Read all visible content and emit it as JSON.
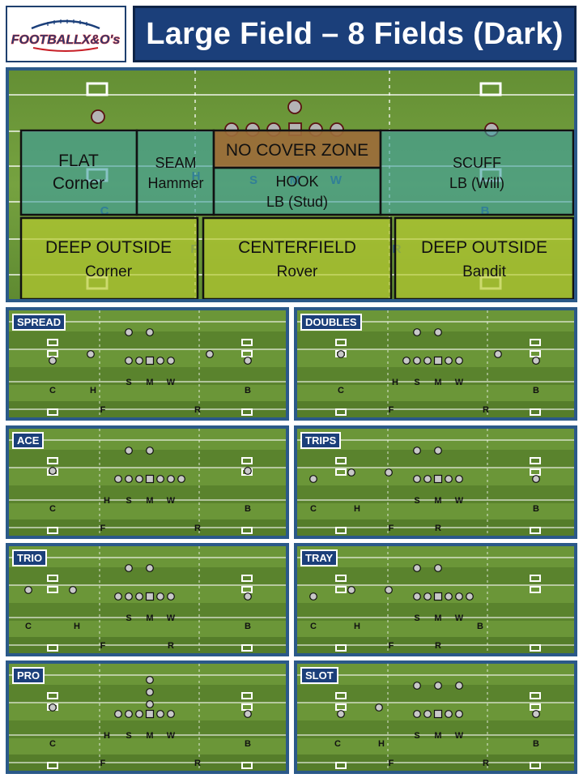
{
  "header": {
    "logo_text": "FOOTBALLX&O's",
    "title": "Large Field – 8 Fields (Dark)"
  },
  "big_field": {
    "zones": [
      {
        "name": "FLAT",
        "player": "Corner"
      },
      {
        "name": "SEAM",
        "player": "Hammer"
      },
      {
        "name": "NO COVER ZONE",
        "player": ""
      },
      {
        "name": "HOOK",
        "player": "LB (Stud)"
      },
      {
        "name": "SCUFF",
        "player": "LB (Will)"
      },
      {
        "name": "DEEP OUTSIDE",
        "player": "Corner"
      },
      {
        "name": "CENTERFIELD",
        "player": "Rover"
      },
      {
        "name": "DEEP OUTSIDE",
        "player": "Bandit"
      }
    ],
    "defenders": [
      "C",
      "H",
      "S",
      "M",
      "W",
      "B",
      "F",
      "R"
    ]
  },
  "formations": [
    {
      "name": "SPREAD",
      "defenders": [
        "C",
        "H",
        "S",
        "M",
        "W",
        "B",
        "F",
        "R"
      ]
    },
    {
      "name": "DOUBLES",
      "defenders": [
        "H",
        "S",
        "M",
        "W",
        "C",
        "B",
        "F",
        "R"
      ]
    },
    {
      "name": "ACE",
      "defenders": [
        "H",
        "S",
        "M",
        "W",
        "C",
        "B",
        "F",
        "R"
      ]
    },
    {
      "name": "TRIPS",
      "defenders": [
        "S",
        "M",
        "W",
        "C",
        "H",
        "B",
        "F",
        "R"
      ]
    },
    {
      "name": "TRIO",
      "defenders": [
        "S",
        "M",
        "W",
        "C",
        "H",
        "B",
        "F",
        "R"
      ]
    },
    {
      "name": "TRAY",
      "defenders": [
        "S",
        "M",
        "W",
        "B",
        "C",
        "H",
        "F",
        "R"
      ]
    },
    {
      "name": "PRO",
      "defenders": [
        "H",
        "S",
        "M",
        "W",
        "C",
        "B",
        "F",
        "R"
      ]
    },
    {
      "name": "SLOT",
      "defenders": [
        "S",
        "M",
        "W",
        "C",
        "H",
        "B",
        "F",
        "R"
      ]
    }
  ],
  "colors": {
    "panel_border": "#2b5989",
    "title_bg": "#1b3f7a",
    "turf_light": "#6e9a3a",
    "turf_dark": "#557d2a",
    "underneath_zone": "#3d9ea0",
    "deep_zone": "#b7cb2f",
    "no_cover_zone": "#9b6c3a"
  }
}
